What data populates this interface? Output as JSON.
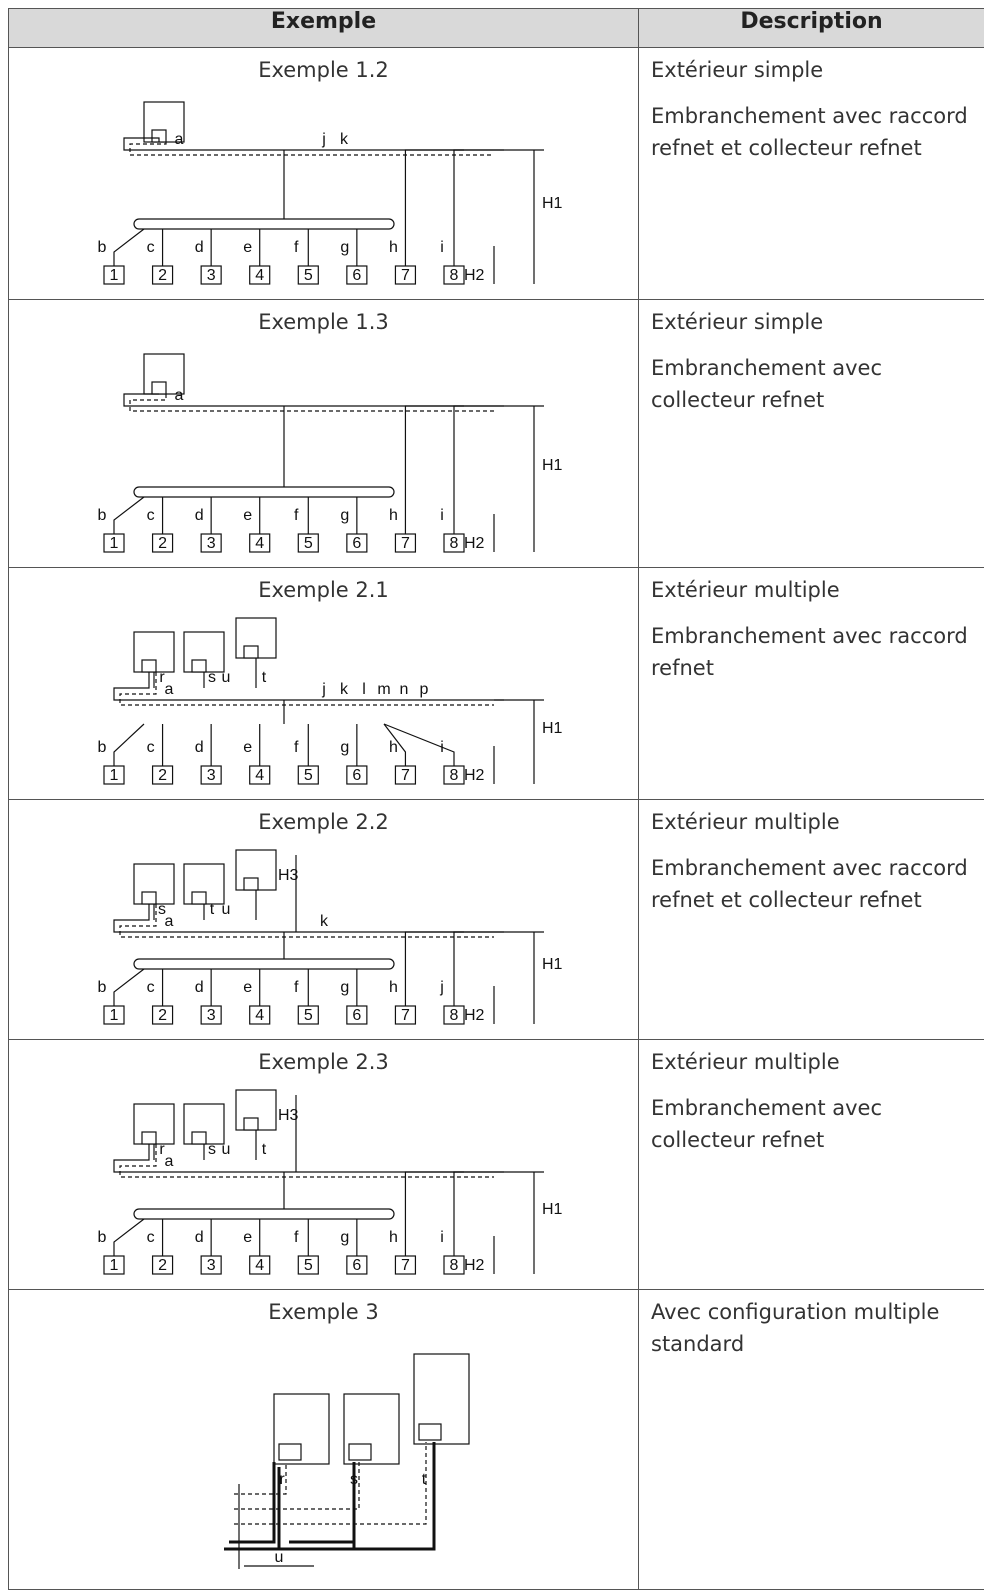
{
  "table": {
    "header": [
      "Exemple",
      "Description"
    ],
    "rows": [
      {
        "example": "Exemple 1.2",
        "description": [
          "Extérieur simple",
          "Embranchement avec raccord refnet et collecteur refnet"
        ],
        "diagram": {
          "units": [
            "1",
            "2",
            "3",
            "4",
            "5",
            "6",
            "7",
            "8"
          ],
          "pipes": [
            "a",
            "b",
            "c",
            "d",
            "e",
            "f",
            "g",
            "h",
            "i",
            "j",
            "k"
          ],
          "heights": [
            "H1",
            "H2"
          ]
        }
      },
      {
        "example": "Exemple 1.3",
        "description": [
          "Extérieur simple",
          "Embranchement avec collecteur refnet"
        ],
        "diagram": {
          "units": [
            "1",
            "2",
            "3",
            "4",
            "5",
            "6",
            "7",
            "8"
          ],
          "pipes": [
            "a",
            "b",
            "c",
            "d",
            "e",
            "f",
            "g",
            "h",
            "i"
          ],
          "heights": [
            "H1",
            "H2"
          ]
        }
      },
      {
        "example": "Exemple 2.1",
        "description": [
          "Extérieur multiple",
          "Embranchement avec raccord refnet"
        ],
        "diagram": {
          "units": [
            "1",
            "2",
            "3",
            "4",
            "5",
            "6",
            "7",
            "8"
          ],
          "pipes": [
            "r",
            "s",
            "t",
            "u",
            "a",
            "b",
            "c",
            "d",
            "e",
            "f",
            "g",
            "h",
            "i",
            "j",
            "k",
            "l",
            "m",
            "n",
            "p"
          ],
          "heights": [
            "H1",
            "H2"
          ]
        }
      },
      {
        "example": "Exemple 2.2",
        "description": [
          "Extérieur multiple",
          "Embranchement avec raccord refnet et collecteur refnet"
        ],
        "diagram": {
          "units": [
            "1",
            "2",
            "3",
            "4",
            "5",
            "6",
            "7",
            "8"
          ],
          "pipes": [
            "s",
            "t",
            "u",
            "a",
            "b",
            "c",
            "d",
            "e",
            "f",
            "g",
            "h",
            "j",
            "k"
          ],
          "heights": [
            "H1",
            "H2",
            "H3"
          ]
        }
      },
      {
        "example": "Exemple 2.3",
        "description": [
          "Extérieur multiple",
          "Embranchement avec collecteur refnet"
        ],
        "diagram": {
          "units": [
            "1",
            "2",
            "3",
            "4",
            "5",
            "6",
            "7",
            "8"
          ],
          "pipes": [
            "r",
            "s",
            "t",
            "u",
            "a",
            "b",
            "c",
            "d",
            "e",
            "f",
            "g",
            "h",
            "i"
          ],
          "heights": [
            "H1",
            "H2",
            "H3"
          ]
        }
      },
      {
        "example": "Exemple 3",
        "description": [
          "Avec configuration multiple standard"
        ],
        "diagram": {
          "units": [],
          "pipes": [
            "r",
            "s",
            "t",
            "u"
          ],
          "heights": []
        }
      }
    ]
  }
}
